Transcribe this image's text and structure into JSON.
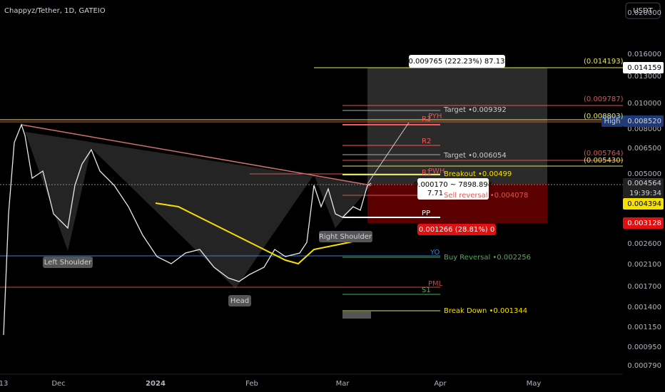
{
  "header": {
    "title": "Chappyz/Tether, 1D, GATEIO",
    "currency": "USDT"
  },
  "price_axis": {
    "labels": [
      "0.020000",
      "0.016000",
      "0.013000",
      "0.010000",
      "0.008000",
      "0.006500",
      "0.005000",
      "0.002600",
      "0.002100",
      "0.001700",
      "0.001400",
      "0.001150",
      "0.000950",
      "0.000790"
    ]
  },
  "badges": {
    "target_price": "0.014159",
    "high_label": "High",
    "high_price": "0.008520",
    "last_price": "0.004564",
    "countdown": "19:39:34",
    "ma_price": "0.004394",
    "stop_price": "0.003128"
  },
  "time_axis": {
    "labels": [
      "13",
      "Dec",
      "2024",
      "Feb",
      "Mar",
      "Apr",
      "May"
    ]
  },
  "annotations": {
    "measure_top": "0.009765 (222.23%) 87.13",
    "measure_mid": "0.000170 ~ 7898.894",
    "measure_bars": "7.71",
    "measure_bottom": "0.001266 (28.81%) 0",
    "level_14193": "(0.014193)",
    "level_9787": "(0.009787)",
    "level_8803": "(0.008803)",
    "level_5764": "(0.005764)",
    "level_5430": "(0.005430)",
    "target_1": "Target •0.009392",
    "target_2": "Target •0.006054",
    "breakout": "Breakout  •0.00499",
    "sell_reversal": "Sell reversal •0.004078",
    "pp": "PP",
    "buy_reversal": "Buy Reversal •0.002256",
    "break_down": "Break Down  •0.001344",
    "r3": "R3",
    "pyh": "PYH",
    "r2": "R2",
    "r1": "R1",
    "pwh": "PWH",
    "yo": "YO",
    "pml": "PML",
    "s1": "S1",
    "left_shoulder": "Left Shoulder",
    "right_shoulder": "Right Shoulder",
    "head": "Head"
  }
}
